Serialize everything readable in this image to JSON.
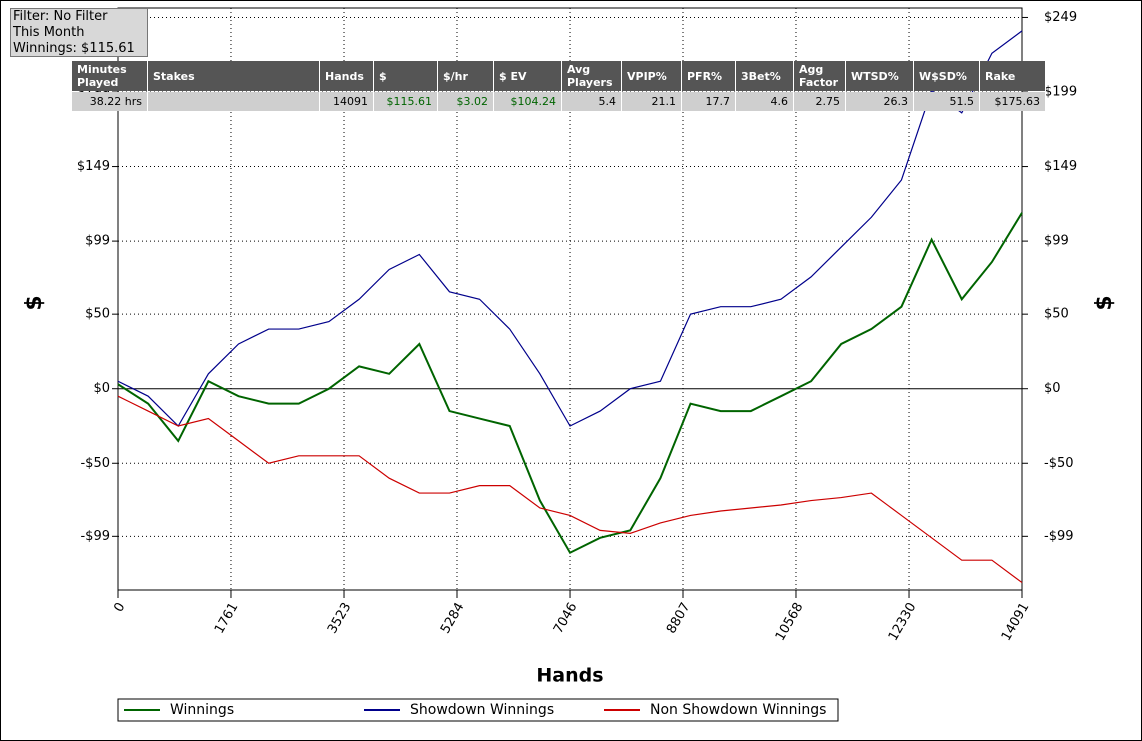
{
  "info_box": {
    "lines": [
      "Filter: No Filter",
      "This Month",
      "Winnings: $115.61"
    ]
  },
  "stats_table": {
    "headers": [
      "Minutes Played",
      "Stakes",
      "Hands",
      "$",
      "$/hr",
      "$ EV",
      "Avg Players",
      "VPIP%",
      "PFR%",
      "3Bet%",
      "Agg Factor",
      "WTSD%",
      "W$SD%",
      "Rake"
    ],
    "rows": [
      [
        "38.22 hrs",
        "",
        "14091",
        "$115.61",
        "$3.02",
        "$104.24",
        "5.4",
        "21.1",
        "17.7",
        "4.6",
        "2.75",
        "26.3",
        "51.5",
        "$175.63"
      ]
    ]
  },
  "chart_data": {
    "type": "line",
    "x_label": "Hands",
    "y_label": "$",
    "x": [
      0,
      470,
      939,
      1409,
      1879,
      2349,
      2818,
      3288,
      3758,
      4227,
      4697,
      5167,
      5636,
      6106,
      6576,
      7046,
      7515,
      7985,
      8455,
      8924,
      9394,
      9864,
      10334,
      10803,
      11273,
      11743,
      12212,
      12682,
      13152,
      13622,
      14091
    ],
    "series": [
      {
        "name": "Winnings",
        "color": "#006400",
        "values": [
          3,
          -10,
          -35,
          5,
          -5,
          -10,
          -10,
          0,
          15,
          10,
          30,
          -15,
          -20,
          -25,
          -75,
          -110,
          -100,
          -95,
          -60,
          -10,
          -15,
          -15,
          -5,
          5,
          30,
          40,
          55,
          100,
          60,
          85,
          118
        ]
      },
      {
        "name": "Showdown Winnings",
        "color": "#00008b",
        "values": [
          5,
          -5,
          -25,
          10,
          30,
          40,
          40,
          45,
          60,
          80,
          90,
          65,
          60,
          40,
          10,
          -25,
          -15,
          0,
          5,
          50,
          55,
          55,
          60,
          75,
          95,
          115,
          140,
          200,
          185,
          225,
          240
        ]
      },
      {
        "name": "Non Showdown Winnings",
        "color": "#cc0000",
        "values": [
          -5,
          -15,
          -25,
          -20,
          -35,
          -50,
          -45,
          -45,
          -45,
          -60,
          -70,
          -70,
          -65,
          -65,
          -80,
          -85,
          -95,
          -97,
          -90,
          -85,
          -82,
          -80,
          -78,
          -75,
          -73,
          -70,
          -85,
          -100,
          -115,
          -115,
          -130
        ]
      }
    ],
    "xlim": [
      0,
      14091
    ],
    "xticks": [
      0,
      1761,
      3523,
      5284,
      7046,
      8807,
      10568,
      12330,
      14091
    ],
    "ylim": [
      -135,
      254
    ],
    "yticks": [
      {
        "value": 249,
        "label": "$249"
      },
      {
        "value": 199,
        "label": "$199"
      },
      {
        "value": 149,
        "label": "$149"
      },
      {
        "value": 99,
        "label": "$99"
      },
      {
        "value": 50,
        "label": "$50"
      },
      {
        "value": 0,
        "label": "$0"
      },
      {
        "value": -50,
        "label": "-$50"
      },
      {
        "value": -99,
        "label": "-$99"
      }
    ],
    "grid": true
  }
}
